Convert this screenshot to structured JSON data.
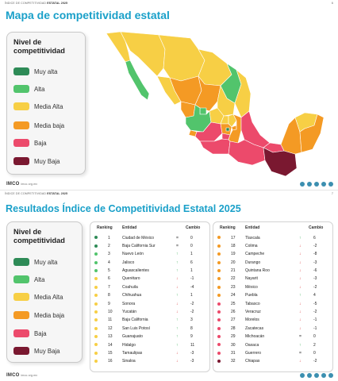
{
  "page1": {
    "header_left": "ÍNDICE DE COMPETITIVIDAD",
    "header_bold": "ESTATAL 2025",
    "page_number": "6",
    "title": "Mapa de competitividad estatal"
  },
  "page2": {
    "header_left": "ÍNDICE DE COMPETITIVIDAD",
    "header_bold": "ESTATAL 2025",
    "page_number": "7",
    "title": "Resultados Índice de Competitividad Estatal 2025",
    "col_ranking": "Ranking",
    "col_entidad": "Entidad",
    "col_cambio": "Cambio"
  },
  "legend": {
    "title_line1": "Nivel de",
    "title_line2": "competitividad",
    "items": [
      {
        "label": "Muy alta",
        "color": "#2e8b57"
      },
      {
        "label": "Alta",
        "color": "#52c46c"
      },
      {
        "label": "Media Alta",
        "color": "#f7cf45"
      },
      {
        "label": "Media baja",
        "color": "#f49a24"
      },
      {
        "label": "Baja",
        "color": "#ec4a6b"
      },
      {
        "label": "Muy Baja",
        "color": "#7a1830"
      }
    ]
  },
  "footer": {
    "logo": "IMCO",
    "site": "imco.org.mx"
  },
  "ranking_left": [
    {
      "rank": "1",
      "entity": "Ciudad de México",
      "arrow": "=",
      "dir": "eq",
      "change": "0",
      "level": 0
    },
    {
      "rank": "2",
      "entity": "Baja California Sur",
      "arrow": "=",
      "dir": "eq",
      "change": "0",
      "level": 0
    },
    {
      "rank": "3",
      "entity": "Nuevo León",
      "arrow": "↑",
      "dir": "up",
      "change": "1",
      "level": 1
    },
    {
      "rank": "4",
      "entity": "Jalisco",
      "arrow": "↑",
      "dir": "up",
      "change": "6",
      "level": 1
    },
    {
      "rank": "5",
      "entity": "Aguascalientes",
      "arrow": "↑",
      "dir": "up",
      "change": "1",
      "level": 1
    },
    {
      "rank": "6",
      "entity": "Querétaro",
      "arrow": "↓",
      "dir": "dn",
      "change": "-1",
      "level": 2
    },
    {
      "rank": "7",
      "entity": "Coahuila",
      "arrow": "↓",
      "dir": "dn",
      "change": "-4",
      "level": 2
    },
    {
      "rank": "8",
      "entity": "Chihuahua",
      "arrow": "↑",
      "dir": "up",
      "change": "1",
      "level": 2
    },
    {
      "rank": "9",
      "entity": "Sonora",
      "arrow": "↓",
      "dir": "dn",
      "change": "-2",
      "level": 2
    },
    {
      "rank": "10",
      "entity": "Yucatán",
      "arrow": "↓",
      "dir": "dn",
      "change": "-2",
      "level": 2
    },
    {
      "rank": "11",
      "entity": "Baja California",
      "arrow": "↑",
      "dir": "up",
      "change": "3",
      "level": 2
    },
    {
      "rank": "12",
      "entity": "San Luis Potosí",
      "arrow": "↑",
      "dir": "up",
      "change": "8",
      "level": 2
    },
    {
      "rank": "13",
      "entity": "Guanajuato",
      "arrow": "↑",
      "dir": "up",
      "change": "9",
      "level": 2
    },
    {
      "rank": "14",
      "entity": "Hidalgo",
      "arrow": "↑",
      "dir": "up",
      "change": "11",
      "level": 2
    },
    {
      "rank": "15",
      "entity": "Tamaulipas",
      "arrow": "↓",
      "dir": "dn",
      "change": "-3",
      "level": 2
    },
    {
      "rank": "16",
      "entity": "Sinaloa",
      "arrow": "↓",
      "dir": "dn",
      "change": "-3",
      "level": 2
    }
  ],
  "ranking_right": [
    {
      "rank": "17",
      "entity": "Tlaxcala",
      "arrow": "↑",
      "dir": "up",
      "change": "6",
      "level": 3
    },
    {
      "rank": "18",
      "entity": "Colima",
      "arrow": "↓",
      "dir": "dn",
      "change": "-2",
      "level": 3
    },
    {
      "rank": "19",
      "entity": "Campeche",
      "arrow": "↓",
      "dir": "dn",
      "change": "-8",
      "level": 3
    },
    {
      "rank": "20",
      "entity": "Durango",
      "arrow": "↓",
      "dir": "dn",
      "change": "-3",
      "level": 3
    },
    {
      "rank": "21",
      "entity": "Quintana Roo",
      "arrow": "↓",
      "dir": "dn",
      "change": "-6",
      "level": 3
    },
    {
      "rank": "22",
      "entity": "Nayarit",
      "arrow": "↓",
      "dir": "dn",
      "change": "-3",
      "level": 3
    },
    {
      "rank": "23",
      "entity": "México",
      "arrow": "↓",
      "dir": "dn",
      "change": "-2",
      "level": 3
    },
    {
      "rank": "24",
      "entity": "Puebla",
      "arrow": "↑",
      "dir": "up",
      "change": "4",
      "level": 3
    },
    {
      "rank": "25",
      "entity": "Tabasco",
      "arrow": "↓",
      "dir": "dn",
      "change": "-5",
      "level": 4
    },
    {
      "rank": "26",
      "entity": "Veracruz",
      "arrow": "↓",
      "dir": "dn",
      "change": "-2",
      "level": 4
    },
    {
      "rank": "27",
      "entity": "Morelos",
      "arrow": "↓",
      "dir": "dn",
      "change": "-1",
      "level": 4
    },
    {
      "rank": "28",
      "entity": "Zacatecas",
      "arrow": "↓",
      "dir": "dn",
      "change": "-1",
      "level": 4
    },
    {
      "rank": "29",
      "entity": "Michoacán",
      "arrow": "=",
      "dir": "eq",
      "change": "0",
      "level": 4
    },
    {
      "rank": "30",
      "entity": "Oaxaca",
      "arrow": "↑",
      "dir": "up",
      "change": "2",
      "level": 4
    },
    {
      "rank": "31",
      "entity": "Guerrero",
      "arrow": "=",
      "dir": "eq",
      "change": "0",
      "level": 4
    },
    {
      "rank": "32",
      "entity": "Chiapas",
      "arrow": "↓",
      "dir": "dn",
      "change": "-2",
      "level": 5
    }
  ]
}
